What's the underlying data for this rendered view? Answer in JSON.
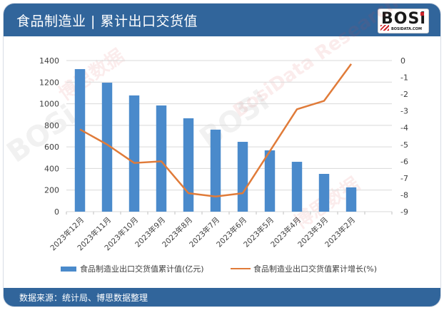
{
  "header": {
    "title": "食品制造业 | 累计出口交货值",
    "logo_text": "BOSi",
    "logo_sub": "BOSIDATA.COM"
  },
  "footer": {
    "source": "数据来源：统计局、博思数据整理"
  },
  "watermarks": [
    "博思数据",
    "BosiData Research",
    "BOSi"
  ],
  "colors": {
    "header_bg": "#31659b",
    "bar": "#4a8acb",
    "line": "#e07b39",
    "grid": "#d9d9d9"
  },
  "legend": {
    "bar_label": "食品制造业出口交货值累计值(亿元)",
    "line_label": "食品制造业出口交货值累计增长(%)"
  },
  "chart_data": {
    "type": "bar+line",
    "title": "食品制造业 | 累计出口交货值",
    "categories": [
      "2023年12月",
      "2023年11月",
      "2023年10月",
      "2023年9月",
      "2023年8月",
      "2023年7月",
      "2023年6月",
      "2023年5月",
      "2023年4月",
      "2023年3月",
      "2023年2月"
    ],
    "series": [
      {
        "name": "食品制造业出口交货值累计值(亿元)",
        "type": "bar",
        "axis": "left",
        "values": [
          1321,
          1195,
          1077,
          984,
          865,
          760,
          647,
          568,
          462,
          350,
          225
        ]
      },
      {
        "name": "食品制造业出口交货值累计增长(%)",
        "type": "line",
        "axis": "right",
        "values": [
          -4.1,
          -5.0,
          -6.1,
          -6.0,
          -7.9,
          -8.1,
          -7.9,
          -5.4,
          -2.9,
          -2.4,
          -0.2
        ]
      }
    ],
    "left_axis": {
      "ylim": [
        0,
        1400
      ],
      "ticks": [
        0,
        200,
        400,
        600,
        800,
        1000,
        1200,
        1400
      ]
    },
    "right_axis": {
      "ylim": [
        -9,
        0
      ],
      "ticks": [
        0,
        -1,
        -2,
        -3,
        -4,
        -5,
        -6,
        -7,
        -8,
        -9
      ]
    },
    "grid": true,
    "legend_position": "bottom"
  }
}
